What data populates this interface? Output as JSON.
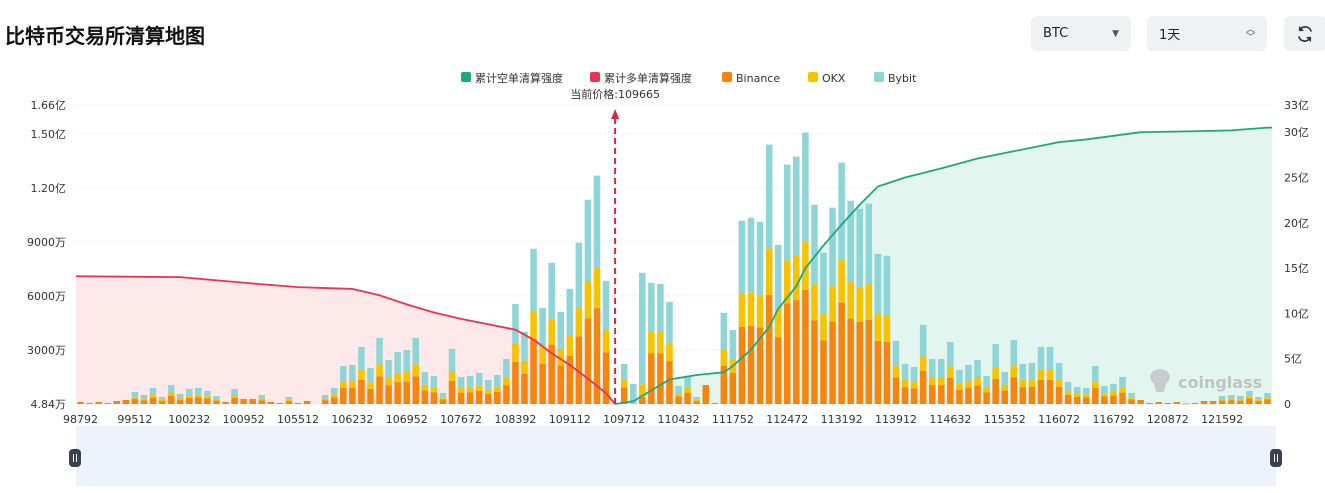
{
  "header": {
    "title": "比特币交易所清算地图",
    "coin_select": "BTC",
    "period_select": "1天",
    "refresh_icon": "refresh-icon",
    "select_icon": "caret-down-icon",
    "period_icon": "up-down-chevron-icon"
  },
  "watermark": "coinglass",
  "current_price_label": "当前价格:109665",
  "colors": {
    "short_cum": "#1ea97c",
    "long_cum": "#e8344e",
    "Binance": "#f5850f",
    "OKX": "#f7c200",
    "Bybit": "#8ed5d7"
  },
  "chart_data": {
    "type": "bar",
    "legend": [
      "累计空单清算强度",
      "累计多单清算强度",
      "Binance",
      "OKX",
      "Bybit"
    ],
    "legend_position": "top",
    "x_tick_labels": [
      "98792",
      "99512",
      "100232",
      "100952",
      "105512",
      "106232",
      "106952",
      "107672",
      "108392",
      "109112",
      "109712",
      "110432",
      "111752",
      "112472",
      "113192",
      "113912",
      "114632",
      "115352",
      "116072",
      "116792",
      "120872",
      "121592"
    ],
    "bar_count": 132,
    "current_price": 109665,
    "current_price_bar": 60,
    "left_axis": {
      "unit": "万",
      "ticks": [
        "4.84万",
        "3000万",
        "6000万",
        "9000万",
        "1.20亿",
        "1.50亿",
        "1.66亿"
      ],
      "tick_values": [
        4.84,
        3000,
        6000,
        9000,
        12000,
        15000,
        16600
      ],
      "range": [
        0,
        16600
      ]
    },
    "right_axis": {
      "unit": "亿",
      "ticks": [
        "0",
        "5亿",
        "10亿",
        "15亿",
        "20亿",
        "25亿",
        "30亿",
        "33亿"
      ],
      "tick_values": [
        0,
        5,
        10,
        15,
        20,
        25,
        30,
        33
      ],
      "range": [
        0,
        33
      ]
    },
    "grid": true,
    "series": [
      {
        "name": "Binance",
        "stack": true,
        "values": [
          111,
          56,
          111,
          56,
          167,
          222,
          280,
          210,
          374,
          163,
          444,
          234,
          350,
          374,
          304,
          187,
          111,
          350,
          278,
          278,
          210,
          111,
          56,
          163,
          56,
          167,
          0,
          210,
          374,
          887,
          911,
          1331,
          841,
          1541,
          1027,
          1214,
          1261,
          1541,
          747,
          654,
          257,
          1284,
          630,
          654,
          724,
          560,
          677,
          1051,
          2335,
          1681,
          3620,
          2242,
          3293,
          2148,
          2685,
          3760,
          4764,
          5324,
          2872,
          0,
          934,
          0,
          400,
          2826,
          2802,
          2382,
          420,
          630,
          163,
          1056,
          56,
          2125,
          1728,
          4274,
          4344,
          4250,
          6048,
          3713,
          5581,
          5768,
          6329,
          4647,
          3526,
          4577,
          5628,
          4741,
          4554,
          4670,
          3503,
          3456,
          1471,
          934,
          864,
          1845,
          1051,
          1051,
          1448,
          794,
          911,
          1027,
          654,
          1401,
          747,
          1494,
          934,
          958,
          1331,
          1331,
          958,
          514,
          397,
          374,
          887,
          420,
          467,
          630,
          257,
          222,
          56,
          111,
          56,
          111,
          28,
          56,
          167,
          167,
          187,
          210,
          187,
          304,
          163,
          257
        ]
      },
      {
        "name": "OKX",
        "stack": true,
        "values": [
          0,
          0,
          0,
          0,
          0,
          0,
          120,
          90,
          160,
          70,
          190,
          100,
          150,
          160,
          130,
          80,
          0,
          150,
          0,
          0,
          90,
          0,
          0,
          70,
          0,
          0,
          0,
          90,
          160,
          380,
          390,
          570,
          360,
          661,
          440,
          520,
          540,
          661,
          320,
          280,
          110,
          550,
          270,
          280,
          310,
          240,
          290,
          450,
          1001,
          721,
          1551,
          961,
          1411,
          921,
          1151,
          1611,
          2042,
          2282,
          1231,
          0,
          400,
          0,
          700,
          1211,
          1201,
          1021,
          180,
          270,
          70,
          0,
          0,
          911,
          741,
          1832,
          1862,
          1821,
          2592,
          1591,
          2392,
          2472,
          2712,
          1992,
          1511,
          1962,
          2412,
          2032,
          1952,
          2002,
          1501,
          1481,
          631,
          400,
          370,
          791,
          450,
          450,
          620,
          340,
          390,
          440,
          280,
          600,
          320,
          640,
          400,
          410,
          570,
          570,
          410,
          220,
          170,
          160,
          380,
          180,
          200,
          270,
          110,
          0,
          0,
          0,
          0,
          0,
          0,
          0,
          0,
          0,
          80,
          90,
          80,
          130,
          70,
          110
        ]
      },
      {
        "name": "Bybit",
        "stack": true,
        "values": [
          0,
          0,
          0,
          0,
          0,
          0,
          267,
          200,
          356,
          156,
          422,
          222,
          334,
          356,
          289,
          178,
          0,
          334,
          0,
          0,
          200,
          0,
          0,
          156,
          0,
          0,
          0,
          200,
          356,
          846,
          867,
          1268,
          801,
          1468,
          979,
          1157,
          1201,
          1468,
          712,
          623,
          245,
          1224,
          601,
          623,
          690,
          534,
          645,
          1001,
          2224,
          1601,
          3447,
          2135,
          3136,
          2046,
          2558,
          3581,
          4536,
          5071,
          2736,
          0,
          890,
          1112,
          6184,
          2691,
          2669,
          2268,
          401,
          601,
          156,
          0,
          0,
          2024,
          1645,
          4069,
          4136,
          4048,
          5760,
          3536,
          5315,
          5493,
          6027,
          4425,
          3359,
          4359,
          5360,
          4514,
          4336,
          4448,
          3336,
          3292,
          1401,
          890,
          823,
          1756,
          1001,
          1001,
          1379,
          756,
          867,
          979,
          623,
          1335,
          712,
          1424,
          890,
          912,
          1268,
          1268,
          912,
          489,
          378,
          356,
          846,
          401,
          445,
          601,
          245,
          0,
          0,
          0,
          0,
          0,
          0,
          0,
          0,
          0,
          178,
          200,
          178,
          289,
          156,
          245
        ]
      },
      {
        "name": "累计多单清算强度",
        "type": "line",
        "axis": "right",
        "points": [
          [
            1,
            14.1
          ],
          [
            12,
            14.0
          ],
          [
            20,
            13.3
          ],
          [
            25,
            12.9
          ],
          [
            31,
            12.7
          ],
          [
            34,
            12.0
          ],
          [
            37,
            11.0
          ],
          [
            40,
            10.1
          ],
          [
            43,
            9.4
          ],
          [
            46,
            8.8
          ],
          [
            49,
            8.2
          ],
          [
            51,
            7.1
          ],
          [
            53,
            5.6
          ],
          [
            55,
            4.3
          ],
          [
            57,
            2.8
          ],
          [
            59,
            1.2
          ],
          [
            60,
            0
          ]
        ]
      },
      {
        "name": "累计空单清算强度",
        "type": "line",
        "axis": "right",
        "points": [
          [
            60,
            0
          ],
          [
            62,
            0.3
          ],
          [
            64,
            1.5
          ],
          [
            66,
            2.7
          ],
          [
            69,
            3.2
          ],
          [
            72,
            3.5
          ],
          [
            73,
            4.2
          ],
          [
            75,
            6.0
          ],
          [
            77,
            8.5
          ],
          [
            78,
            10.5
          ],
          [
            80,
            13.0
          ],
          [
            81,
            15.0
          ],
          [
            83,
            17.5
          ],
          [
            85,
            19.8
          ],
          [
            87,
            22.0
          ],
          [
            89,
            24.0
          ],
          [
            92,
            25.0
          ],
          [
            96,
            26.0
          ],
          [
            100,
            27.1
          ],
          [
            103,
            27.7
          ],
          [
            106,
            28.3
          ],
          [
            109,
            28.9
          ],
          [
            112,
            29.2
          ],
          [
            115,
            29.6
          ],
          [
            118,
            30.0
          ],
          [
            124,
            30.1
          ],
          [
            128,
            30.2
          ],
          [
            132,
            30.5
          ]
        ]
      }
    ]
  }
}
